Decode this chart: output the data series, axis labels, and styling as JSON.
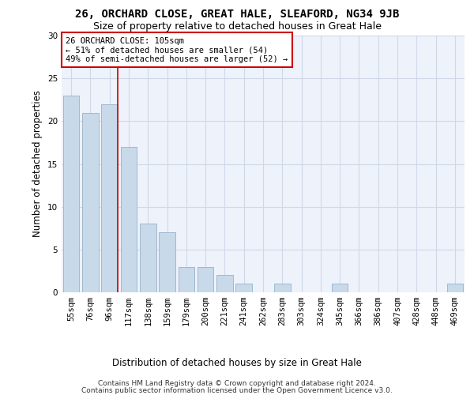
{
  "title": "26, ORCHARD CLOSE, GREAT HALE, SLEAFORD, NG34 9JB",
  "subtitle": "Size of property relative to detached houses in Great Hale",
  "xlabel": "Distribution of detached houses by size in Great Hale",
  "ylabel": "Number of detached properties",
  "footer_line1": "Contains HM Land Registry data © Crown copyright and database right 2024.",
  "footer_line2": "Contains public sector information licensed under the Open Government Licence v3.0.",
  "categories": [
    "55sqm",
    "76sqm",
    "96sqm",
    "117sqm",
    "138sqm",
    "159sqm",
    "179sqm",
    "200sqm",
    "221sqm",
    "241sqm",
    "262sqm",
    "283sqm",
    "303sqm",
    "324sqm",
    "345sqm",
    "366sqm",
    "386sqm",
    "407sqm",
    "428sqm",
    "448sqm",
    "469sqm"
  ],
  "values": [
    23,
    21,
    22,
    17,
    8,
    7,
    3,
    3,
    2,
    1,
    0,
    1,
    0,
    0,
    1,
    0,
    0,
    0,
    0,
    0,
    1
  ],
  "bar_color": "#c8d9ea",
  "bar_edge_color": "#a0b8d0",
  "vline_x_idx": 2,
  "vline_color": "#cc0000",
  "annotation_text": "26 ORCHARD CLOSE: 105sqm\n← 51% of detached houses are smaller (54)\n49% of semi-detached houses are larger (52) →",
  "annotation_box_color": "white",
  "annotation_box_edge": "#cc0000",
  "ylim": [
    0,
    30
  ],
  "yticks": [
    0,
    5,
    10,
    15,
    20,
    25,
    30
  ],
  "grid_color": "#d0d8e8",
  "bg_color": "#eef2fa",
  "title_fontsize": 10,
  "subtitle_fontsize": 9,
  "label_fontsize": 8.5,
  "tick_fontsize": 7.5,
  "footer_fontsize": 6.5
}
